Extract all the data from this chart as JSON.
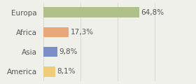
{
  "categories": [
    "Europa",
    "Africa",
    "Asia",
    "America"
  ],
  "values": [
    64.8,
    17.3,
    9.8,
    8.1
  ],
  "labels": [
    "64,8%",
    "17,3%",
    "9,8%",
    "8,1%"
  ],
  "bar_colors": [
    "#afc08a",
    "#e8a87a",
    "#7b8ec8",
    "#f0cc7a"
  ],
  "background_color": "#f0f0eb",
  "xlim": [
    0,
    100
  ],
  "label_fontsize": 7.5,
  "category_fontsize": 7.5,
  "bar_height": 0.52,
  "grid_x": [
    0,
    25,
    50,
    75,
    100
  ],
  "grid_color": "#d0d0c8",
  "text_color": "#555555"
}
